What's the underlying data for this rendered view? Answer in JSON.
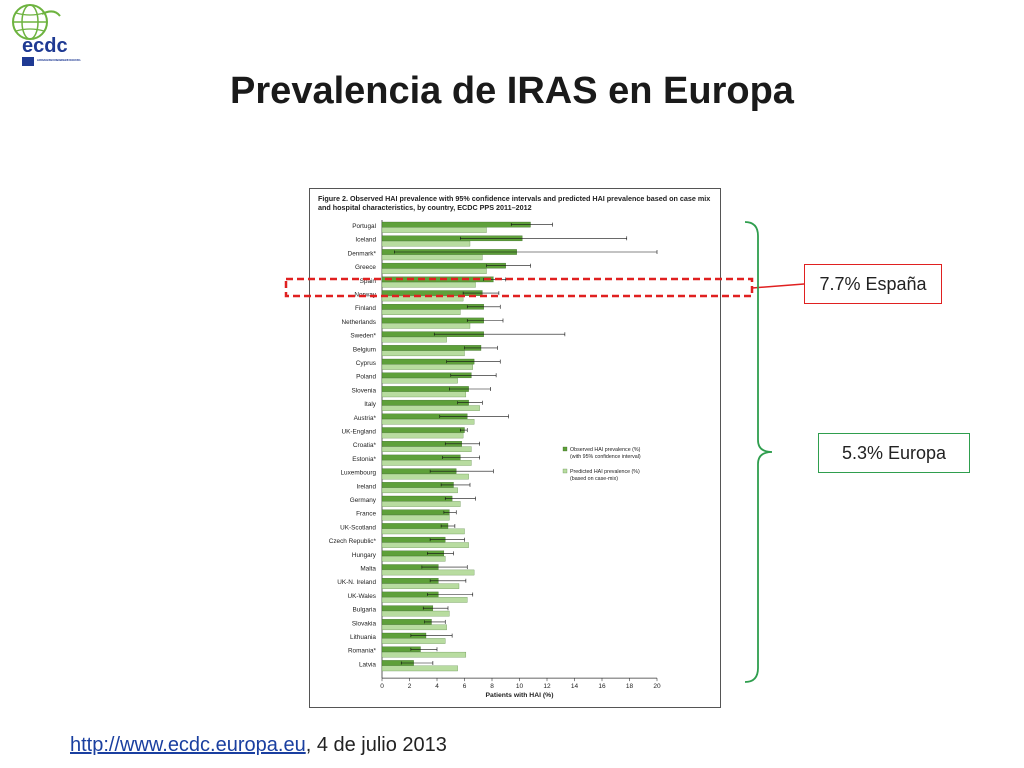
{
  "slide": {
    "title": "Prevalencia de IRAS en Europa",
    "footer_link": "http://www.ecdc.europa.eu",
    "footer_text": ", 4 de julio 2013"
  },
  "logo": {
    "text": "ecdc",
    "subtext": "EUROPEAN CENTRE FOR DISEASE PREVENTION AND CONTROL",
    "colors": {
      "green": "#6db33f",
      "blue": "#1f3a93"
    }
  },
  "callouts": {
    "spain": "7.7% España",
    "europe": "5.3% Europa"
  },
  "chart_data": {
    "type": "bar",
    "orientation": "horizontal",
    "title": "Figure 2. Observed HAI prevalence with 95% confidence intervals and predicted HAI prevalence based on case mix and hospital characteristics, by country, ECDC PPS 2011–2012",
    "xlabel": "Patients with HAI (%)",
    "xlim": [
      0,
      20
    ],
    "xticks": [
      "0",
      "2",
      "4",
      "6",
      "8",
      "10",
      "12",
      "14",
      "16",
      "18",
      "20"
    ],
    "legend": [
      "Observed HAI prevalence (%) (with 95% confidence interval)",
      "Predicted HAI prevalence (%) (based on case-mix)"
    ],
    "legend_position": "right",
    "colors": {
      "observed": "#5ea03a",
      "predicted": "#b8dca0"
    },
    "categories": [
      "Portugal",
      "Iceland",
      "Denmark*",
      "Greece",
      "Spain",
      "Norway",
      "Finland",
      "Netherlands",
      "Sweden*",
      "Belgium",
      "Cyprus",
      "Poland",
      "Slovenia",
      "Italy",
      "Austria*",
      "UK-England",
      "Croatia*",
      "Estonia*",
      "Luxembourg",
      "Ireland",
      "Germany",
      "France",
      "UK-Scotland",
      "Czech Republic*",
      "Hungary",
      "Malta",
      "UK-N. Ireland",
      "UK-Wales",
      "Bulgaria",
      "Slovakia",
      "Lithuania",
      "Romania*",
      "Latvia"
    ],
    "observed": [
      10.8,
      10.2,
      9.8,
      9.0,
      8.1,
      7.3,
      7.4,
      7.4,
      7.4,
      7.2,
      6.7,
      6.5,
      6.3,
      6.3,
      6.2,
      6.0,
      5.8,
      5.7,
      5.4,
      5.2,
      5.1,
      4.9,
      4.8,
      4.6,
      4.5,
      4.1,
      4.1,
      4.1,
      3.7,
      3.6,
      3.2,
      2.8,
      2.3
    ],
    "ci_low": [
      9.4,
      5.7,
      0.9,
      7.6,
      7.4,
      5.9,
      6.2,
      6.2,
      3.8,
      6.0,
      4.7,
      5.0,
      4.9,
      5.5,
      4.2,
      5.7,
      4.6,
      4.4,
      3.5,
      4.3,
      4.6,
      4.5,
      4.3,
      3.5,
      3.3,
      2.9,
      3.5,
      3.3,
      3.0,
      3.1,
      2.1,
      2.1,
      1.4
    ],
    "ci_high": [
      12.4,
      17.8,
      20.0,
      10.8,
      9.0,
      8.5,
      8.6,
      8.8,
      13.3,
      8.4,
      8.6,
      8.3,
      7.9,
      7.3,
      9.2,
      6.2,
      7.1,
      7.1,
      8.1,
      6.4,
      6.8,
      5.4,
      5.3,
      6.0,
      5.2,
      6.2,
      6.1,
      6.6,
      4.8,
      4.6,
      5.1,
      4.0,
      3.7
    ],
    "predicted": [
      7.6,
      6.4,
      7.3,
      7.6,
      6.8,
      5.9,
      5.7,
      6.4,
      4.7,
      6.0,
      6.6,
      5.5,
      6.1,
      7.1,
      6.7,
      5.9,
      6.5,
      6.5,
      6.3,
      5.5,
      5.7,
      4.9,
      6.0,
      6.3,
      4.6,
      6.7,
      5.6,
      6.2,
      4.9,
      4.7,
      4.6,
      6.1,
      5.5
    ]
  }
}
